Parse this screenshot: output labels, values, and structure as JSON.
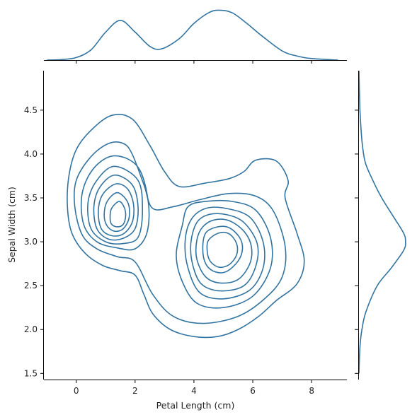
{
  "chart_data": {
    "type": "contour",
    "subtype": "kde-joint-plot",
    "xlabel": "Petal Length (cm)",
    "ylabel": "Sepal Width (cm)",
    "xlim": [
      -1.1,
      9.2
    ],
    "ylim": [
      1.43,
      4.95
    ],
    "xticks": [
      "0",
      "2",
      "4",
      "6",
      "8"
    ],
    "yticks": [
      "1.5",
      "2.0",
      "2.5",
      "3.0",
      "3.5",
      "4.0",
      "4.5"
    ],
    "color": "#3274a1",
    "grid": false,
    "legend": "none",
    "marginal_x": {
      "x": [
        -1.0,
        -0.5,
        0.0,
        0.5,
        1.0,
        1.5,
        2.0,
        2.5,
        2.9,
        3.5,
        4.0,
        4.5,
        4.85,
        5.3,
        5.8,
        6.3,
        7.0,
        7.5,
        8.0,
        8.9
      ],
      "density": [
        0.0,
        0.01,
        0.05,
        0.2,
        0.55,
        0.78,
        0.55,
        0.27,
        0.22,
        0.42,
        0.72,
        0.93,
        0.98,
        0.93,
        0.72,
        0.48,
        0.18,
        0.08,
        0.03,
        0.0
      ]
    },
    "marginal_y": {
      "y": [
        1.5,
        1.8,
        2.0,
        2.2,
        2.5,
        2.7,
        2.9,
        3.0,
        3.1,
        3.3,
        3.5,
        3.7,
        3.9,
        4.1,
        4.3,
        4.5,
        4.7,
        4.95
      ],
      "density": [
        0.0,
        0.02,
        0.06,
        0.14,
        0.37,
        0.65,
        0.9,
        0.94,
        0.9,
        0.68,
        0.46,
        0.28,
        0.13,
        0.07,
        0.04,
        0.02,
        0.01,
        0.0
      ]
    },
    "contours": [
      {
        "level": 1,
        "points": [
          [
            1.2,
            4.44
          ],
          [
            0.5,
            4.27
          ],
          [
            0.0,
            4.05
          ],
          [
            -0.25,
            3.75
          ],
          [
            -0.3,
            3.4
          ],
          [
            -0.15,
            3.1
          ],
          [
            0.3,
            2.87
          ],
          [
            0.9,
            2.73
          ],
          [
            1.5,
            2.67
          ],
          [
            2.0,
            2.62
          ],
          [
            2.3,
            2.4
          ],
          [
            2.6,
            2.18
          ],
          [
            3.2,
            2.0
          ],
          [
            4.0,
            1.92
          ],
          [
            4.8,
            1.92
          ],
          [
            5.5,
            2.0
          ],
          [
            6.2,
            2.15
          ],
          [
            6.8,
            2.33
          ],
          [
            7.5,
            2.52
          ],
          [
            7.75,
            2.78
          ],
          [
            7.5,
            3.1
          ],
          [
            7.1,
            3.5
          ],
          [
            7.2,
            3.7
          ],
          [
            6.8,
            3.92
          ],
          [
            6.1,
            3.93
          ],
          [
            5.7,
            3.8
          ],
          [
            5.2,
            3.72
          ],
          [
            4.4,
            3.67
          ],
          [
            3.5,
            3.63
          ],
          [
            3.0,
            3.8
          ],
          [
            2.5,
            4.1
          ],
          [
            1.9,
            4.4
          ]
        ]
      },
      {
        "level": 2,
        "points": [
          [
            1.1,
            4.12
          ],
          [
            0.5,
            3.97
          ],
          [
            0.0,
            3.7
          ],
          [
            -0.05,
            3.4
          ],
          [
            0.2,
            3.08
          ],
          [
            0.7,
            2.92
          ],
          [
            1.4,
            2.83
          ],
          [
            2.0,
            2.77
          ],
          [
            2.6,
            2.4
          ],
          [
            3.3,
            2.15
          ],
          [
            4.3,
            2.07
          ],
          [
            5.5,
            2.15
          ],
          [
            6.4,
            2.35
          ],
          [
            7.0,
            2.6
          ],
          [
            7.1,
            2.95
          ],
          [
            6.7,
            3.35
          ],
          [
            6.1,
            3.52
          ],
          [
            5.2,
            3.55
          ],
          [
            4.2,
            3.48
          ],
          [
            3.3,
            3.4
          ],
          [
            2.6,
            3.38
          ],
          [
            2.3,
            3.65
          ],
          [
            1.9,
            4.0
          ],
          [
            1.6,
            4.12
          ]
        ]
      },
      {
        "level": 3,
        "points": [
          [
            1.3,
            3.98
          ],
          [
            0.6,
            3.84
          ],
          [
            0.2,
            3.55
          ],
          [
            0.25,
            3.2
          ],
          [
            0.7,
            3.0
          ],
          [
            1.4,
            2.93
          ],
          [
            2.0,
            2.92
          ],
          [
            2.4,
            3.1
          ],
          [
            2.45,
            3.45
          ],
          [
            2.1,
            3.85
          ]
        ]
      },
      {
        "level": 4,
        "points": [
          [
            3.6,
            3.18
          ],
          [
            3.8,
            3.4
          ],
          [
            4.4,
            3.46
          ],
          [
            5.3,
            3.46
          ],
          [
            6.1,
            3.36
          ],
          [
            6.6,
            3.05
          ],
          [
            6.6,
            2.7
          ],
          [
            6.0,
            2.38
          ],
          [
            5.0,
            2.25
          ],
          [
            4.1,
            2.3
          ],
          [
            3.6,
            2.55
          ],
          [
            3.4,
            2.85
          ]
        ]
      },
      {
        "level": 5,
        "points": [
          [
            1.3,
            3.86
          ],
          [
            0.7,
            3.7
          ],
          [
            0.4,
            3.45
          ],
          [
            0.5,
            3.15
          ],
          [
            1.0,
            3.0
          ],
          [
            1.6,
            2.98
          ],
          [
            2.1,
            3.05
          ],
          [
            2.25,
            3.35
          ],
          [
            2.1,
            3.7
          ]
        ]
      },
      {
        "level": 6,
        "points": [
          [
            3.9,
            3.25
          ],
          [
            4.4,
            3.38
          ],
          [
            5.1,
            3.38
          ],
          [
            5.9,
            3.28
          ],
          [
            6.35,
            3.0
          ],
          [
            6.35,
            2.7
          ],
          [
            5.9,
            2.45
          ],
          [
            5.0,
            2.35
          ],
          [
            4.2,
            2.42
          ],
          [
            3.8,
            2.7
          ],
          [
            3.7,
            3.0
          ]
        ]
      },
      {
        "level": 7,
        "points": [
          [
            1.3,
            3.76
          ],
          [
            0.8,
            3.62
          ],
          [
            0.6,
            3.4
          ],
          [
            0.7,
            3.15
          ],
          [
            1.1,
            3.03
          ],
          [
            1.6,
            3.04
          ],
          [
            2.0,
            3.15
          ],
          [
            2.1,
            3.4
          ],
          [
            1.9,
            3.65
          ]
        ]
      },
      {
        "level": 8,
        "points": [
          [
            4.1,
            3.22
          ],
          [
            4.5,
            3.31
          ],
          [
            5.1,
            3.31
          ],
          [
            5.7,
            3.22
          ],
          [
            6.15,
            2.98
          ],
          [
            6.1,
            2.72
          ],
          [
            5.7,
            2.5
          ],
          [
            4.9,
            2.44
          ],
          [
            4.25,
            2.52
          ],
          [
            3.95,
            2.75
          ],
          [
            3.9,
            3.0
          ]
        ]
      },
      {
        "level": 9,
        "points": [
          [
            1.35,
            3.66
          ],
          [
            0.9,
            3.54
          ],
          [
            0.75,
            3.35
          ],
          [
            0.85,
            3.15
          ],
          [
            1.2,
            3.07
          ],
          [
            1.6,
            3.09
          ],
          [
            1.9,
            3.22
          ],
          [
            1.95,
            3.42
          ],
          [
            1.75,
            3.6
          ]
        ]
      },
      {
        "level": 10,
        "points": [
          [
            4.3,
            3.17
          ],
          [
            4.7,
            3.25
          ],
          [
            5.2,
            3.24
          ],
          [
            5.7,
            3.12
          ],
          [
            5.95,
            2.95
          ],
          [
            5.9,
            2.75
          ],
          [
            5.5,
            2.57
          ],
          [
            4.9,
            2.53
          ],
          [
            4.4,
            2.6
          ],
          [
            4.1,
            2.8
          ],
          [
            4.1,
            3.02
          ]
        ]
      },
      {
        "level": 11,
        "points": [
          [
            1.4,
            3.56
          ],
          [
            1.05,
            3.46
          ],
          [
            0.95,
            3.3
          ],
          [
            1.05,
            3.18
          ],
          [
            1.3,
            3.12
          ],
          [
            1.6,
            3.15
          ],
          [
            1.8,
            3.28
          ],
          [
            1.75,
            3.45
          ]
        ]
      },
      {
        "level": 12,
        "points": [
          [
            4.4,
            3.1
          ],
          [
            4.8,
            3.17
          ],
          [
            5.2,
            3.16
          ],
          [
            5.55,
            3.05
          ],
          [
            5.65,
            2.92
          ],
          [
            5.5,
            2.78
          ],
          [
            5.1,
            2.66
          ],
          [
            4.7,
            2.66
          ],
          [
            4.4,
            2.75
          ],
          [
            4.3,
            2.92
          ]
        ]
      },
      {
        "level": 13,
        "points": [
          [
            1.45,
            3.46
          ],
          [
            1.2,
            3.38
          ],
          [
            1.15,
            3.28
          ],
          [
            1.2,
            3.2
          ],
          [
            1.4,
            3.17
          ],
          [
            1.6,
            3.2
          ],
          [
            1.68,
            3.3
          ],
          [
            1.62,
            3.4
          ]
        ]
      },
      {
        "level": 14,
        "points": [
          [
            4.5,
            3.02
          ],
          [
            4.85,
            3.1
          ],
          [
            5.2,
            3.09
          ],
          [
            5.45,
            2.98
          ],
          [
            5.45,
            2.85
          ],
          [
            5.2,
            2.74
          ],
          [
            4.85,
            2.71
          ],
          [
            4.55,
            2.78
          ],
          [
            4.45,
            2.9
          ]
        ]
      }
    ]
  }
}
